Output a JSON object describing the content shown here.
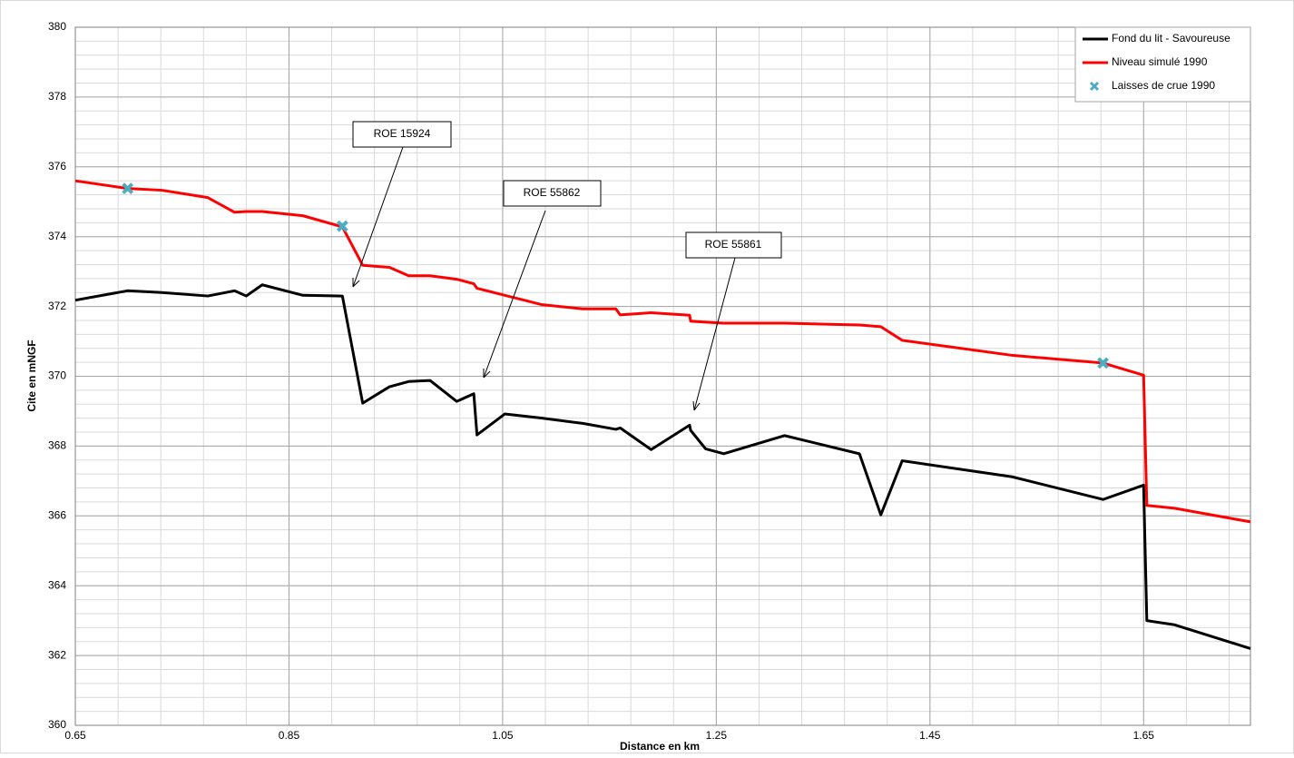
{
  "chart_data": {
    "type": "line",
    "xlabel": "Distance en km",
    "ylabel": "Cite en mNGF",
    "xlim": [
      0.65,
      1.75
    ],
    "xticks": [
      0.65,
      0.85,
      1.05,
      1.25,
      1.45,
      1.65
    ],
    "ylim": [
      360,
      380
    ],
    "yticks": [
      360,
      362,
      364,
      366,
      368,
      370,
      372,
      374,
      376,
      378,
      380
    ],
    "grid": true,
    "legend": "upper right",
    "x": [
      0.65,
      0.699,
      0.731,
      0.774,
      0.799,
      0.81,
      0.825,
      0.863,
      0.9,
      0.919,
      0.944,
      0.962,
      0.982,
      1.007,
      1.023,
      1.026,
      1.052,
      1.087,
      1.125,
      1.156,
      1.16,
      1.189,
      1.225,
      1.226,
      1.24,
      1.257,
      1.314,
      1.384,
      1.404,
      1.424,
      1.527,
      1.612,
      1.65,
      1.653,
      1.679,
      1.75
    ],
    "series": [
      {
        "name": "Fond du lit - Savoureuse",
        "color": "#000000",
        "values": [
          372.18,
          372.45,
          372.4,
          372.3,
          372.45,
          372.3,
          372.62,
          372.32,
          372.3,
          369.23,
          369.7,
          369.85,
          369.88,
          369.28,
          369.5,
          368.32,
          368.92,
          368.8,
          368.65,
          368.48,
          368.52,
          367.9,
          368.6,
          368.45,
          367.92,
          367.78,
          368.3,
          367.78,
          366.03,
          367.58,
          367.12,
          366.47,
          366.88,
          363.0,
          362.88,
          362.2
        ]
      },
      {
        "name": "Niveau simulé 1990",
        "color": "#ff0000",
        "values": [
          375.6,
          375.38,
          375.33,
          375.12,
          374.7,
          374.72,
          374.72,
          374.6,
          374.28,
          373.18,
          373.12,
          372.88,
          372.88,
          372.78,
          372.65,
          372.52,
          372.32,
          372.05,
          371.93,
          371.93,
          371.76,
          371.82,
          371.75,
          371.58,
          371.55,
          371.52,
          371.52,
          371.47,
          371.42,
          371.03,
          370.6,
          370.38,
          370.03,
          366.3,
          366.22,
          365.83
        ]
      },
      {
        "name": "Laisses de crue 1990",
        "color": "#4bacc6",
        "marker": "x",
        "x": [
          0.699,
          0.9,
          1.612
        ],
        "values": [
          375.38,
          374.3,
          370.38
        ]
      }
    ],
    "annotations": [
      "ROE 15924",
      "ROE 55862",
      "ROE 55861"
    ]
  }
}
